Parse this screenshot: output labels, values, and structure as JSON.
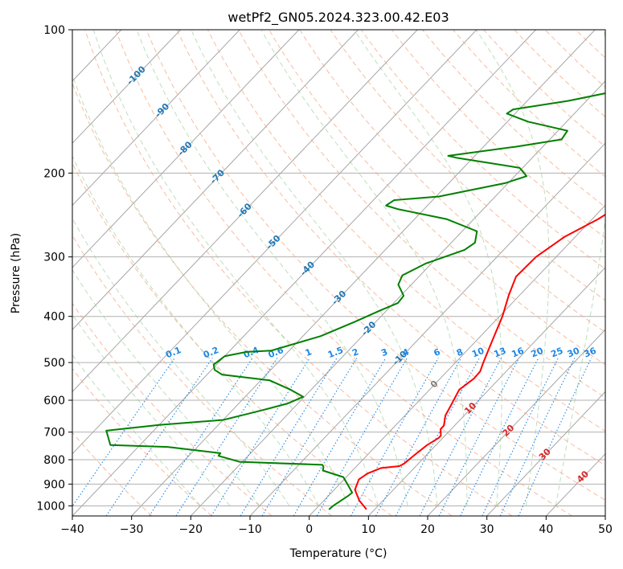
{
  "chart_data": {
    "type": "line",
    "subtype": "skew-t log-p diagram",
    "title": "wetPf2_GN05.2024.323.00.42.E03",
    "xlabel": "Temperature (°C)",
    "ylabel": "Pressure (hPa)",
    "xlim": [
      -40,
      50
    ],
    "ylim": [
      1050,
      100
    ],
    "y_scale": "log",
    "grid": true,
    "x_ticks": [
      -40,
      -30,
      -20,
      -10,
      0,
      10,
      20,
      30,
      40,
      50
    ],
    "y_ticks": [
      100,
      200,
      300,
      400,
      500,
      600,
      700,
      800,
      900,
      1000
    ],
    "skewed_isotherm_labels": [
      {
        "value": "-100",
        "p": 125
      },
      {
        "value": "-90",
        "p": 148
      },
      {
        "value": "-80",
        "p": 178
      },
      {
        "value": "-70",
        "p": 204
      },
      {
        "value": "-60",
        "p": 240
      },
      {
        "value": "-50",
        "p": 280
      },
      {
        "value": "-40",
        "p": 318
      },
      {
        "value": "-30",
        "p": 366
      },
      {
        "value": "-20",
        "p": 425
      },
      {
        "value": "-10",
        "p": 490
      },
      {
        "value": "0",
        "p": 556
      },
      {
        "value": "10",
        "p": 625
      },
      {
        "value": "20",
        "p": 696
      },
      {
        "value": "30",
        "p": 781
      },
      {
        "value": "40",
        "p": 870
      }
    ],
    "mixing_ratio_labels": [
      "0.1",
      "0.2",
      "0.4",
      "0.6",
      "1",
      "1.5",
      "2",
      "3",
      "4",
      "6",
      "8",
      "10",
      "13",
      "16",
      "20",
      "25",
      "30",
      "36"
    ],
    "series": [
      {
        "name": "Temperature",
        "color": "#ff0000",
        "points": [
          [
            8.6,
            1017
          ],
          [
            6.0,
            975
          ],
          [
            3.5,
            925
          ],
          [
            2.5,
            880
          ],
          [
            3.0,
            855
          ],
          [
            4.4,
            833
          ],
          [
            7.2,
            825
          ],
          [
            7.6,
            815
          ],
          [
            8.0,
            780
          ],
          [
            8.5,
            745
          ],
          [
            9.3,
            720
          ],
          [
            9.3,
            712
          ],
          [
            8.2,
            690
          ],
          [
            8.2,
            678
          ],
          [
            7.2,
            655
          ],
          [
            6.8,
            645
          ],
          [
            6.2,
            618
          ],
          [
            5.0,
            570
          ],
          [
            5.7,
            540
          ],
          [
            5.6,
            522
          ],
          [
            4.7,
            500
          ],
          [
            2.7,
            450
          ],
          [
            0.5,
            400
          ],
          [
            -1.9,
            360
          ],
          [
            -3.6,
            330
          ],
          [
            -3.4,
            300
          ],
          [
            -1.8,
            272
          ],
          [
            1.0,
            250
          ],
          [
            2.5,
            234
          ],
          [
            3.6,
            222
          ],
          [
            5.8,
            210
          ],
          [
            10.5,
            195
          ],
          [
            15.5,
            180
          ],
          [
            21.5,
            160
          ],
          [
            24.6,
            146
          ],
          [
            27.5,
            130
          ],
          [
            28.6,
            120
          ],
          [
            30.1,
            108
          ],
          [
            31.9,
            100
          ]
        ]
      },
      {
        "name": "Dewpoint",
        "color": "#008000",
        "points": [
          [
            2.3,
            1018
          ],
          [
            2.4,
            1000
          ],
          [
            3.3,
            955
          ],
          [
            3.5,
            938
          ],
          [
            1.5,
            903
          ],
          [
            -0.5,
            870
          ],
          [
            -5.0,
            843
          ],
          [
            -5.5,
            828
          ],
          [
            -6.0,
            820
          ],
          [
            -20.5,
            808
          ],
          [
            -25.0,
            785
          ],
          [
            -25.1,
            775
          ],
          [
            -35.0,
            752
          ],
          [
            -45.0,
            745
          ],
          [
            -48.0,
            695
          ],
          [
            -40.0,
            676
          ],
          [
            -30.0,
            660
          ],
          [
            -25.0,
            630
          ],
          [
            -21.8,
            610
          ],
          [
            -20.2,
            590
          ],
          [
            -23.5,
            570
          ],
          [
            -28.5,
            545
          ],
          [
            -37.5,
            530
          ],
          [
            -39.5,
            518
          ],
          [
            -40.5,
            505
          ],
          [
            -40.0,
            485
          ],
          [
            -37.0,
            475
          ],
          [
            -33.0,
            472
          ],
          [
            -27.0,
            440
          ],
          [
            -23.5,
            410
          ],
          [
            -21.0,
            388
          ],
          [
            -19.3,
            375
          ],
          [
            -19.5,
            362
          ],
          [
            -22.2,
            343
          ],
          [
            -23.0,
            328
          ],
          [
            -21.0,
            310
          ],
          [
            -16.6,
            290
          ],
          [
            -16.0,
            280
          ],
          [
            -17.5,
            265
          ],
          [
            -24.5,
            250
          ],
          [
            -34.5,
            238
          ],
          [
            -37.0,
            234
          ],
          [
            -36.5,
            228
          ],
          [
            -29.5,
            224
          ],
          [
            -20.5,
            210
          ],
          [
            -18.0,
            203
          ],
          [
            -20.5,
            195
          ],
          [
            -32.5,
            186
          ],
          [
            -34.5,
            184
          ],
          [
            -24.5,
            176
          ],
          [
            -18.0,
            170
          ],
          [
            -18.4,
            163
          ],
          [
            -26.5,
            156
          ],
          [
            -31.4,
            150
          ],
          [
            -31.0,
            147
          ],
          [
            -23.0,
            141
          ],
          [
            -15.0,
            133
          ],
          [
            -8.5,
            121
          ],
          [
            -2.5,
            110
          ],
          [
            0.6,
            100
          ]
        ]
      }
    ]
  }
}
